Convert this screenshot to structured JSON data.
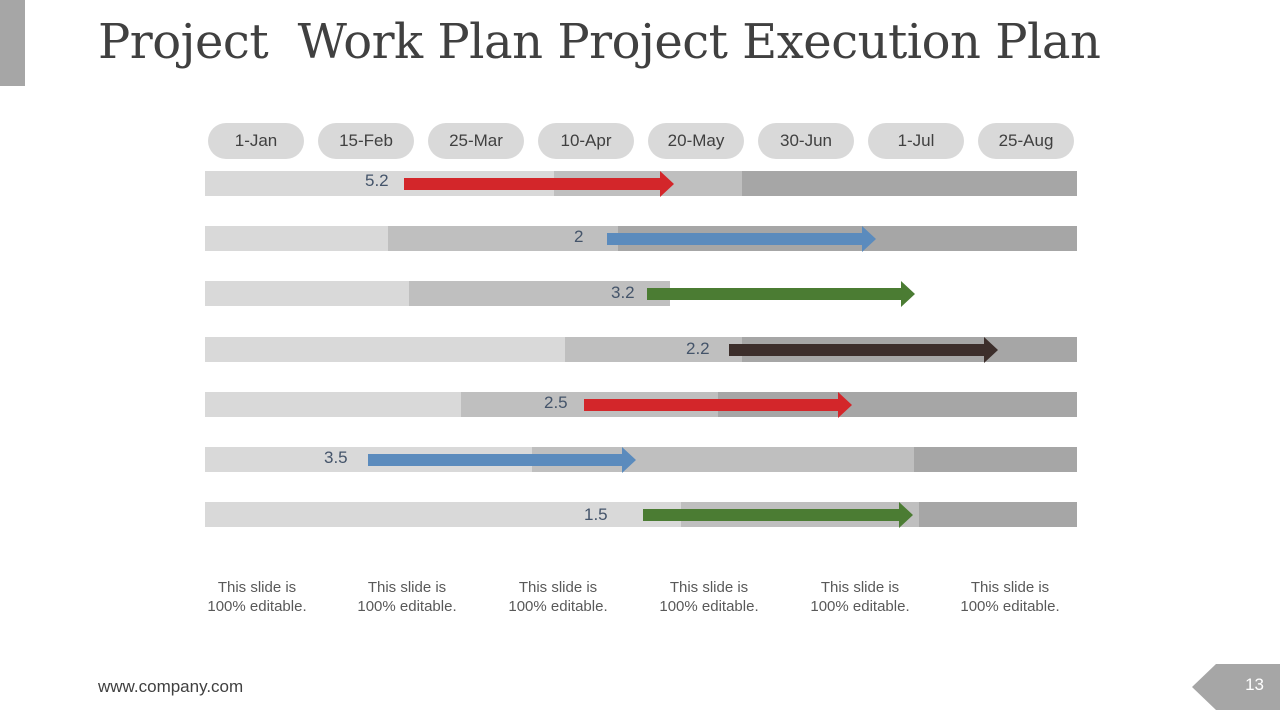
{
  "slide": {
    "title": "Project  Work Plan Project Execution Plan",
    "footer_url": "www.company.com",
    "page_number": "13"
  },
  "colors": {
    "light_gray": "#d9d9d9",
    "mid_gray": "#bfbfbf",
    "dark_gray": "#a6a6a6",
    "red": "#d3262a",
    "blue": "#5b8bbd",
    "green": "#4b7c33",
    "dark_brown": "#3c2e2b"
  },
  "timeline": {
    "milestones": [
      "1-Jan",
      "15-Feb",
      "25-Mar",
      "10-Apr",
      "20-May",
      "30-Jun",
      "1-Jul",
      "25-Aug"
    ]
  },
  "tasks": [
    {
      "label": "5.2",
      "arrow_color": "red"
    },
    {
      "label": "2",
      "arrow_color": "blue"
    },
    {
      "label": "3.2",
      "arrow_color": "green"
    },
    {
      "label": "2.2",
      "arrow_color": "dark_brown"
    },
    {
      "label": "2.5",
      "arrow_color": "red"
    },
    {
      "label": "3.5",
      "arrow_color": "blue"
    },
    {
      "label": "1.5",
      "arrow_color": "green"
    }
  ],
  "notes": [
    {
      "line1": "This slide is",
      "line2": "100% editable."
    },
    {
      "line1": "This slide is",
      "line2": "100% editable."
    },
    {
      "line1": "This slide is",
      "line2": "100% editable."
    },
    {
      "line1": "This slide is",
      "line2": "100% editable."
    },
    {
      "line1": "This slide is",
      "line2": "100% editable."
    },
    {
      "line1": "This slide is",
      "line2": "100% editable."
    }
  ]
}
